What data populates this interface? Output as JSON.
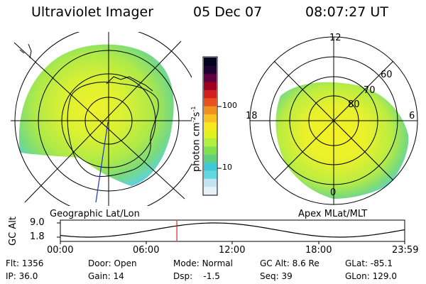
{
  "header": {
    "instrument": "Ultraviolet Imager",
    "date": "05 Dec 07",
    "time": "08:07:27 UT"
  },
  "left_panel": {
    "caption": "Geographic Lat/Lon"
  },
  "right_panel": {
    "caption": "Apex MLat/MLT",
    "mlt_labels": [
      "12",
      "6",
      "0",
      "18"
    ],
    "lat_labels": [
      "60",
      "70",
      "80"
    ]
  },
  "colorbar": {
    "unit_label": "photon cm",
    "unit_exp1": "-2",
    "unit_s": "s",
    "unit_exp2": "-1",
    "tick_labels": [
      "100",
      "10"
    ],
    "colors": [
      "#e8f0f8",
      "#c0e4f0",
      "#60d8e0",
      "#40c8d8",
      "#60d080",
      "#80e050",
      "#b0f040",
      "#e0f020",
      "#f8e820",
      "#f8c020",
      "#f09020",
      "#e85020",
      "#d02020",
      "#a00020",
      "#600040",
      "#200030",
      "#000020"
    ]
  },
  "altitude_plot": {
    "ylabel": "GC Alt",
    "y_ticks": [
      "9.0",
      "1.8"
    ],
    "x_ticks": [
      "00:00",
      "06:00",
      "12:00",
      "18:00",
      "23:59"
    ],
    "current_time_marker_hours": 8.12,
    "marker_color": "#e02020"
  },
  "metadata": {
    "flt_label": "Flt:",
    "flt_value": "1356",
    "ip_label": "IP:",
    "ip_value": "36.0",
    "door_label": "Door:",
    "door_value": "Open",
    "gain_label": "Gain:",
    "gain_value": "14",
    "mode_label": "Mode:",
    "mode_value": "Normal",
    "dsp_label": "Dsp:",
    "dsp_value": "-1.5",
    "gcalt_label": "GC Alt:",
    "gcalt_value": "8.6 Re",
    "seq_label": "Seq:",
    "seq_value": "39",
    "glat_label": "GLat:",
    "glat_value": "-85.1",
    "glon_label": "GLon:",
    "glon_value": "129.0"
  }
}
